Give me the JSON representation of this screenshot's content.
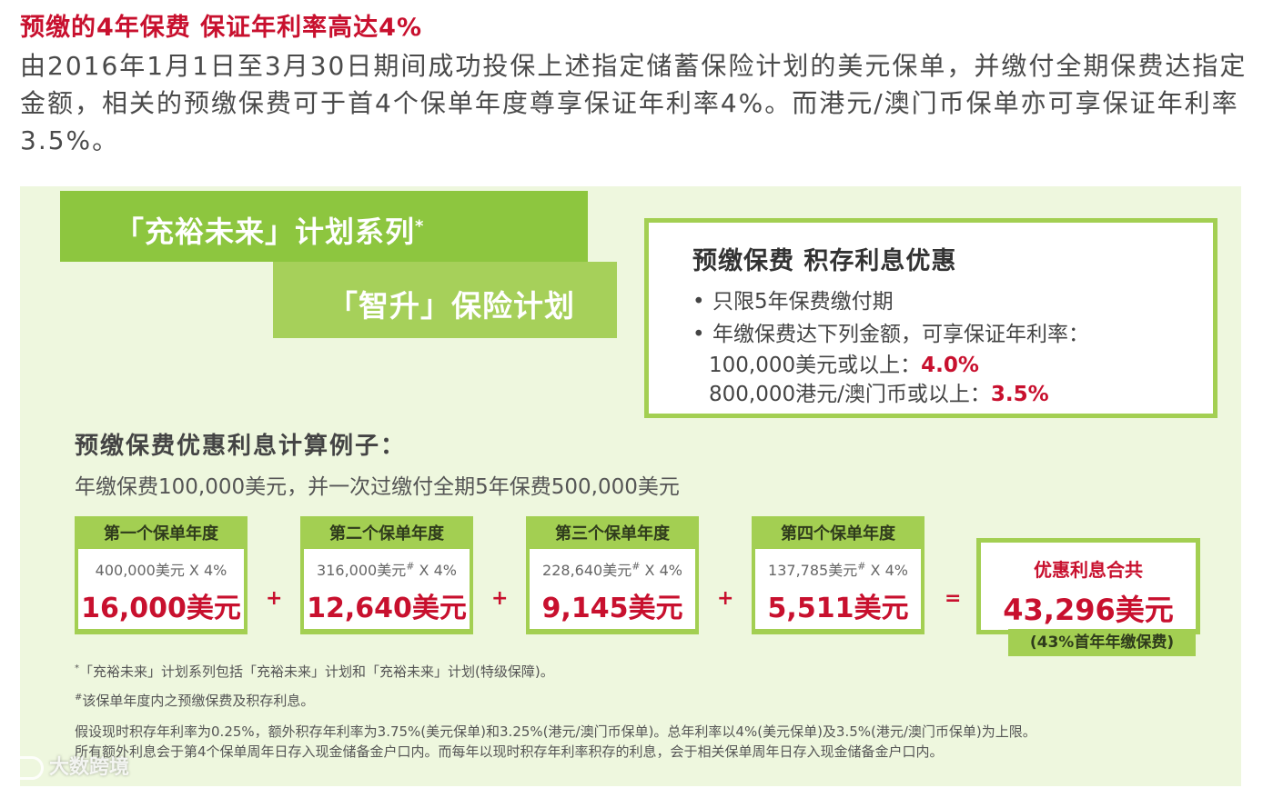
{
  "title": "预缴的4年保费 保证年利率高达4%",
  "intro": "由2016年1月1日至3月30日期间成功投保上述指定储蓄保险计划的美元保单，并缴付全期保费达指定金额，相关的预缴保费可于首4个保单年度尊享保证年利率4%。而港元/澳门币保单亦可享保证年利率3.5%。",
  "bands": {
    "series": "「充裕未来」计划系列",
    "series_mark": "*",
    "plan": "「智升」保险计划"
  },
  "offer": {
    "heading": "预缴保费 积存利息优惠",
    "bullet_mark": "•",
    "item1": "只限5年保费缴付期",
    "item2": "年缴保费达下列金额，可享保证年利率：",
    "usd_text": "100,000美元或以上：",
    "usd_rate": "4.0%",
    "hkd_text": "800,000港元/澳门币或以上：",
    "hkd_rate": "3.5%"
  },
  "example": {
    "title": "预缴保费优惠利息计算例子：",
    "subtitle": "年缴保费100,000美元，并一次过缴付全期5年保费500,000美元",
    "years": [
      {
        "label": "第一个保单年度",
        "calc_base": "400,000美元",
        "calc_mark": "",
        "calc_rate": " X 4%",
        "amount": "16,000美元"
      },
      {
        "label": "第二个保单年度",
        "calc_base": "316,000美元",
        "calc_mark": "#",
        "calc_rate": " X 4%",
        "amount": "12,640美元"
      },
      {
        "label": "第三个保单年度",
        "calc_base": "228,640美元",
        "calc_mark": "#",
        "calc_rate": " X 4%",
        "amount": "9,145美元"
      },
      {
        "label": "第四个保单年度",
        "calc_base": "137,785美元",
        "calc_mark": "#",
        "calc_rate": " X 4%",
        "amount": "5,511美元"
      }
    ],
    "plus": "+",
    "equals": "=",
    "total_label": "优惠利息合共",
    "total_amount": "43,296美元",
    "total_note": "(43%首年年缴保费)"
  },
  "footnotes": {
    "f1_mark": "*",
    "f1": "「充裕未来」计划系列包括「充裕未来」计划和「充裕未来」计划(特级保障)。",
    "f2_mark": "#",
    "f2": "该保单年度内之预缴保费及积存利息。",
    "f3": "假设现时积存年利率为0.25%，额外积存年利率为3.75%(美元保单)和3.25%(港元/澳门币保单)。总年利率以4%(美元保单)及3.5%(港元/澳门币保单)为上限。",
    "f4": "所有额外利息会于第4个保单周年日存入现金储备金户口内。而每年以现时积存年利率积存的利息，会于相关保单周年日存入现金储备金户口内。"
  },
  "watermark": "大数跨境",
  "colors": {
    "accent_red": "#c8102e",
    "accent_green": "#8dc63f",
    "panel_bg": "#eef7de"
  }
}
